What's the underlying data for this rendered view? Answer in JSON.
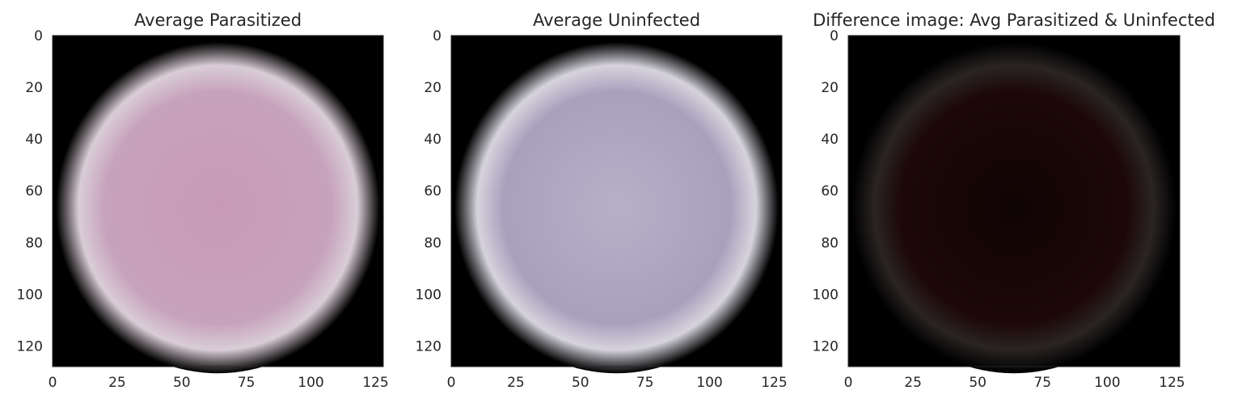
{
  "chart_data": [
    {
      "type": "image",
      "title": "Average Parasitized",
      "xlim": [
        0,
        128
      ],
      "ylim": [
        0,
        128
      ],
      "xticks": [
        0,
        25,
        50,
        75,
        100,
        125
      ],
      "yticks": [
        0,
        20,
        40,
        60,
        80,
        100,
        120
      ],
      "image": {
        "background": "#000000",
        "center_color": "#c89ab7",
        "mid_color": "#c7a2bd",
        "edge_color": "#d9cdd6"
      }
    },
    {
      "type": "image",
      "title": "Average Uninfected",
      "xlim": [
        0,
        128
      ],
      "ylim": [
        0,
        128
      ],
      "xticks": [
        0,
        25,
        50,
        75,
        100,
        125
      ],
      "yticks": [
        0,
        20,
        40,
        60,
        80,
        100,
        120
      ],
      "image": {
        "background": "#000000",
        "center_color": "#b8b0c8",
        "mid_color": "#a9a0bd",
        "edge_color": "#d6d3dc"
      }
    },
    {
      "type": "image",
      "title": "Difference image: Avg Parasitized & Uninfected",
      "xlim": [
        0,
        128
      ],
      "ylim": [
        0,
        128
      ],
      "xticks": [
        0,
        25,
        50,
        75,
        100,
        125
      ],
      "yticks": [
        0,
        20,
        40,
        60,
        80,
        100,
        120
      ],
      "image": {
        "background": "#000000",
        "center_color": "#100404",
        "mid_color": "#1c0807",
        "edge_color": "#2a2424"
      }
    }
  ]
}
